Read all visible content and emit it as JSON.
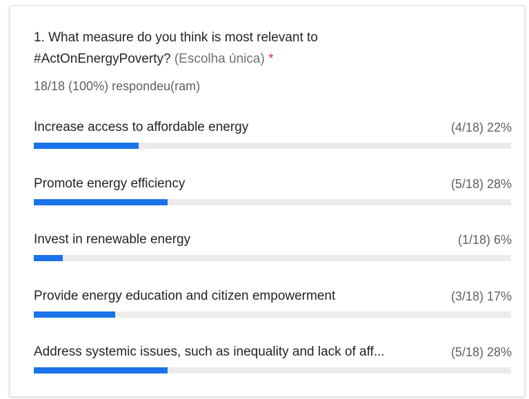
{
  "chart_data": {
    "type": "bar",
    "title": "1. What measure do you think is most relevant to #ActOnEnergyPoverty?",
    "question_type": "(Escolha única)",
    "required_mark": "*",
    "subtitle": "18/18 (100%) respondeu(ram)",
    "categories": [
      "Increase access to affordable energy",
      "Promote energy efficiency",
      "Invest in renewable energy",
      "Provide energy education and citizen empowerment",
      "Address systemic issues, such as inequality and lack of aff..."
    ],
    "values": [
      22,
      28,
      6,
      17,
      28
    ],
    "value_labels": [
      "(4/18) 22%",
      "(5/18) 28%",
      "(1/18) 6%",
      "(3/18) 17%",
      "(5/18) 28%"
    ],
    "xlim": [
      0,
      100
    ],
    "color": "#1a73e8"
  }
}
